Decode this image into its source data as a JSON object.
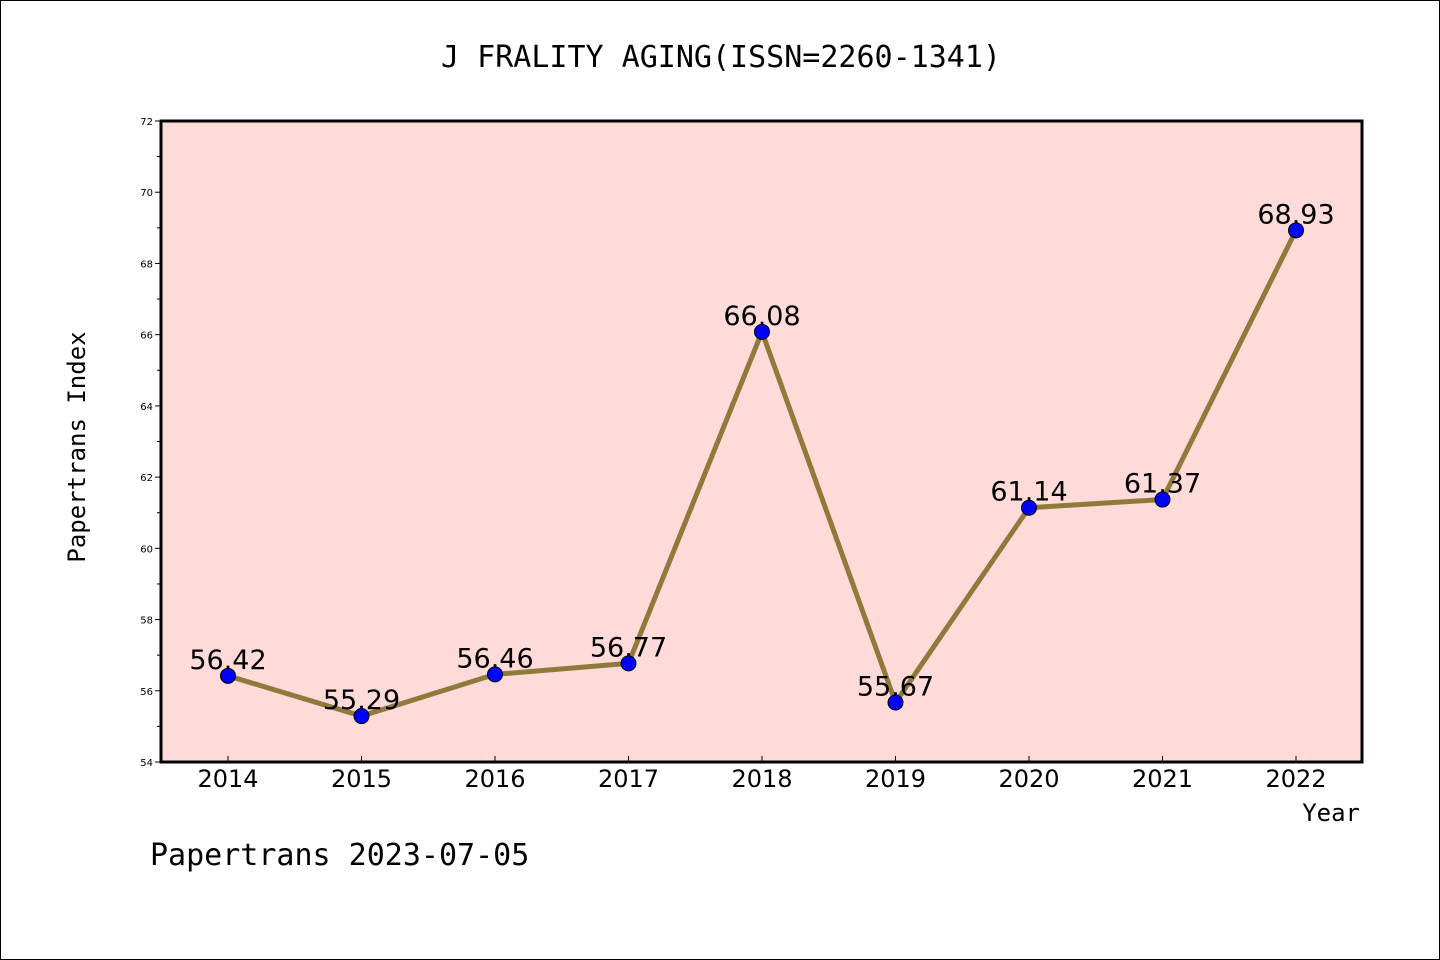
{
  "chart_data": {
    "type": "line",
    "title": "J FRALITY AGING(ISSN=2260-1341)",
    "xlabel": "Year",
    "ylabel": "Papertrans Index",
    "categories": [
      "2014",
      "2015",
      "2016",
      "2017",
      "2018",
      "2019",
      "2020",
      "2021",
      "2022"
    ],
    "series": [
      {
        "values": [
          56.42,
          55.29,
          56.46,
          56.77,
          66.08,
          55.67,
          61.14,
          61.37,
          68.93
        ],
        "labels": [
          "56.42",
          "55.29",
          "56.46",
          "56.77",
          "66.08",
          "55.67",
          "61.14",
          "61.37",
          "68.93"
        ]
      }
    ],
    "ylim": [
      54,
      72
    ],
    "yticks": [
      54,
      56,
      58,
      60,
      62,
      64,
      66,
      68,
      70,
      72
    ],
    "ytick_labels": [
      "54",
      "56",
      "58",
      "60",
      "62",
      "64",
      "66",
      "68",
      "70",
      "72"
    ],
    "grid": false,
    "colors": {
      "plot_background": "#fedbd8",
      "line": "#8f7a3b",
      "marker": "#0000ff"
    }
  },
  "footer": "Papertrans 2023-07-05"
}
